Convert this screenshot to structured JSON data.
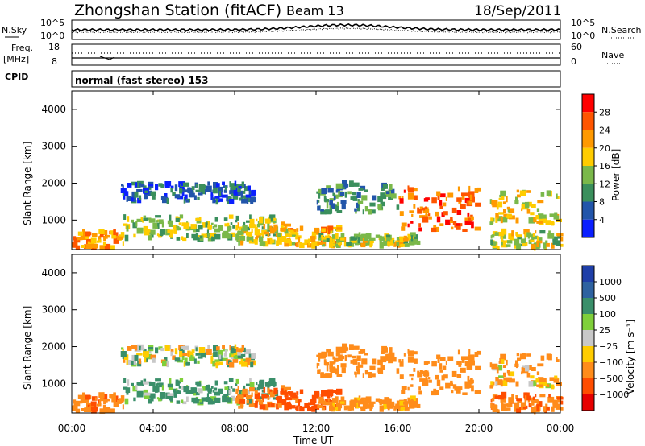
{
  "header": {
    "station": "Zhongshan Station (fitACF)",
    "beam": "Beam 13",
    "date": "18/Sep/2011"
  },
  "top_panels": {
    "nsky_label": "N.Sky",
    "nsearch_label": "N.Search",
    "freq_label_1": "Freq.",
    "freq_label_2": "[MHz]",
    "nave_label": "Nave",
    "cpid_label": "CPID",
    "cpid_text": "normal (fast stereo) 153",
    "noise_ticks": [
      "10^5",
      "10^0"
    ],
    "freq_ticks": [
      "18",
      "8"
    ],
    "nave_ticks": [
      "60",
      "0"
    ]
  },
  "colorbars": {
    "power_label": "Power [dB]",
    "power_ticks": [
      "28",
      "24",
      "20",
      "16",
      "12",
      "8",
      "4"
    ],
    "power_colors": [
      "#ff0000",
      "#ff5500",
      "#ff9900",
      "#ffcc00",
      "#7ab84a",
      "#3a8f5c",
      "#2255aa",
      "#0a1fff"
    ],
    "velocity_label": "Velocity [m s⁻¹]",
    "velocity_ticks": [
      "1000",
      "500",
      "100",
      "25",
      "−25",
      "−100",
      "−500",
      "−1000"
    ],
    "velocity_colors": [
      "#1f3fa8",
      "#2e62a0",
      "#3a8f6a",
      "#7fcf3a",
      "#c8c8c8",
      "#ffcc00",
      "#ff8c1a",
      "#ff4d00",
      "#e60000"
    ]
  },
  "chart_data": [
    {
      "type": "heatmap",
      "name": "power",
      "ylabel": "Slant Range [km]",
      "xlabel": "Time UT",
      "xlim": [
        0,
        24
      ],
      "ylim": [
        200,
        4500
      ],
      "x_ticks": [
        "00:00",
        "04:00",
        "08:00",
        "12:00",
        "16:00",
        "20:00",
        "00:00"
      ],
      "y_ticks": [
        1000,
        2000,
        3000,
        4000
      ],
      "colorbar_range_db": [
        0,
        32
      ]
    },
    {
      "type": "heatmap",
      "name": "velocity",
      "ylabel": "Slant Range [km]",
      "xlabel": "Time UT",
      "xlim": [
        0,
        24
      ],
      "ylim": [
        200,
        4500
      ],
      "x_ticks": [
        "00:00",
        "04:00",
        "08:00",
        "12:00",
        "16:00",
        "20:00",
        "00:00"
      ],
      "y_ticks": [
        1000,
        2000,
        3000,
        4000
      ],
      "colorbar_ticks_ms": [
        1000,
        500,
        100,
        25,
        -25,
        -100,
        -500,
        -1000
      ]
    }
  ]
}
